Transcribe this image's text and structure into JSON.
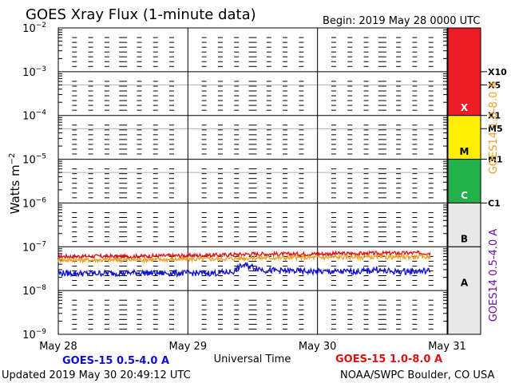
{
  "header": {
    "title": "GOES Xray Flux (1-minute data)",
    "begin": "Begin:  2019 May 28 0000 UTC"
  },
  "footer": {
    "updated": "Updated 2019 May 30 20:49:12 UTC",
    "source": "NOAA/SWPC Boulder, CO USA",
    "series_short": "GOES-15 0.5-4.0 A",
    "series_long": "GOES-15 1.0-8.0 A"
  },
  "right_axis": {
    "label_top": "GOES14 1.0-8.0 A",
    "label_bottom": "GOES14 0.5-4.0 A",
    "class_markers": [
      "X10",
      "X5",
      "X1",
      "M5",
      "M1",
      "C1"
    ]
  },
  "colors": {
    "series_short": "#1010d0",
    "series_long": "#e01010",
    "goes14_long": "#f0a020",
    "goes14_short": "#6a0dad",
    "class_X": "#ee1c25",
    "class_M": "#ffee00",
    "class_C": "#22b24c",
    "class_A": "#e8e8e8"
  },
  "chart_data": {
    "type": "line",
    "title": "GOES Xray Flux (1-minute data)",
    "xlabel": "Universal Time",
    "ylabel": "Watts m^-2",
    "y_scale": "log",
    "ylim": [
      1e-09,
      0.01
    ],
    "y_tick_labels": [
      "10^-9",
      "10^-8",
      "10^-7",
      "10^-6",
      "10^-5",
      "10^-4",
      "10^-3",
      "10^-2"
    ],
    "x_tick_labels": [
      "May 28",
      "May 29",
      "May 30",
      "May 31"
    ],
    "xlim_days": [
      0,
      3
    ],
    "data_end_day": 2.87,
    "flare_classes": [
      "A",
      "B",
      "C",
      "M",
      "X"
    ],
    "series": [
      {
        "name": "GOES-15 1.0-8.0 A",
        "color": "#e01010",
        "x": [
          0,
          0.25,
          0.5,
          0.75,
          1.0,
          1.25,
          1.5,
          1.75,
          2.0,
          2.25,
          2.5,
          2.75,
          2.87
        ],
        "y": [
          6e-08,
          6.1e-08,
          6e-08,
          6.2e-08,
          6.3e-08,
          6.5e-08,
          6.9e-08,
          6.8e-08,
          6.9e-08,
          7e-08,
          7.1e-08,
          7.2e-08,
          7.2e-08
        ]
      },
      {
        "name": "GOES14 1.0-8.0 A",
        "color": "#f0a020",
        "x": [
          0,
          0.25,
          0.5,
          0.75,
          1.0,
          1.25,
          1.5,
          1.75,
          2.0,
          2.25,
          2.5,
          2.75,
          2.87
        ],
        "y": [
          5e-08,
          5e-08,
          5e-08,
          5.1e-08,
          5.2e-08,
          5.3e-08,
          5.6e-08,
          5.6e-08,
          5.7e-08,
          5.8e-08,
          5.8e-08,
          5.9e-08,
          5.9e-08
        ]
      },
      {
        "name": "GOES-15 0.5-4.0 A",
        "color": "#1010d0",
        "x": [
          0,
          0.2,
          0.4,
          0.6,
          0.8,
          1.0,
          1.2,
          1.35,
          1.42,
          1.5,
          1.6,
          1.8,
          2.0,
          2.2,
          2.4,
          2.45,
          2.5,
          2.6,
          2.8,
          2.87
        ],
        "y": [
          2.5e-08,
          2.45e-08,
          2.5e-08,
          2.55e-08,
          2.5e-08,
          2.5e-08,
          2.5e-08,
          2.7e-08,
          3.8e-08,
          3.5e-08,
          2.9e-08,
          2.8e-08,
          2.7e-08,
          2.7e-08,
          2.8e-08,
          3.1e-08,
          2.8e-08,
          2.7e-08,
          2.8e-08,
          2.8e-08
        ]
      }
    ],
    "grid": true
  }
}
